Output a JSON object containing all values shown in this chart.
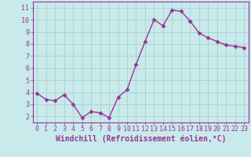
{
  "x": [
    0,
    1,
    2,
    3,
    4,
    5,
    6,
    7,
    8,
    9,
    10,
    11,
    12,
    13,
    14,
    15,
    16,
    17,
    18,
    19,
    20,
    21,
    22,
    23
  ],
  "y": [
    3.9,
    3.4,
    3.3,
    3.8,
    3.0,
    1.9,
    2.4,
    2.3,
    1.9,
    3.6,
    4.2,
    6.3,
    8.2,
    10.0,
    9.5,
    10.8,
    10.7,
    9.9,
    8.9,
    8.5,
    8.2,
    7.9,
    7.8,
    7.7
  ],
  "line_color": "#993399",
  "marker": "D",
  "marker_size": 2.5,
  "bg_color": "#c8eaea",
  "grid_color": "#aacfcf",
  "xlabel": "Windchill (Refroidissement éolien,°C)",
  "xlim": [
    -0.5,
    23.5
  ],
  "ylim": [
    1.5,
    11.5
  ],
  "yticks": [
    2,
    3,
    4,
    5,
    6,
    7,
    8,
    9,
    10,
    11
  ],
  "xticks": [
    0,
    1,
    2,
    3,
    4,
    5,
    6,
    7,
    8,
    9,
    10,
    11,
    12,
    13,
    14,
    15,
    16,
    17,
    18,
    19,
    20,
    21,
    22,
    23
  ],
  "tick_color": "#993399",
  "label_color": "#993399",
  "spine_color": "#993399",
  "font_size_ticks": 6.0,
  "font_size_xlabel": 7.0,
  "line_width": 1.0
}
